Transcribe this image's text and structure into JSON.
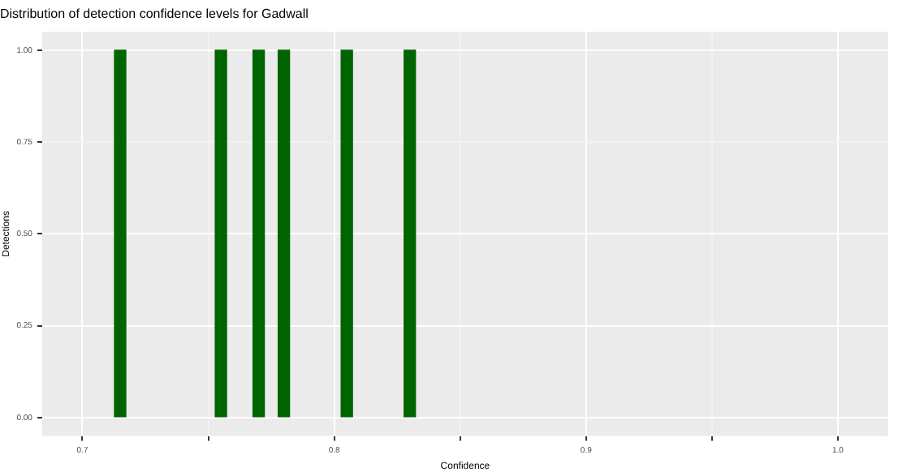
{
  "chart_data": {
    "type": "bar",
    "title": "Distribution of detection confidence levels for Gadwall",
    "xlabel": "Confidence",
    "ylabel": "Detections",
    "x": [
      0.715,
      0.755,
      0.77,
      0.78,
      0.805,
      0.83
    ],
    "values": [
      1,
      1,
      1,
      1,
      1,
      1
    ],
    "color": "#006400",
    "xlim": [
      0.684,
      1.02
    ],
    "xticks": [
      0.7,
      {
        "value": 0.75,
        "label": null
      },
      0.8,
      {
        "value": 0.85,
        "label": null
      },
      0.9,
      {
        "value": 0.95,
        "label": null
      },
      {
        "value": 1,
        "label": "1.0"
      }
    ],
    "ylim": [
      -0.05,
      1.05
    ],
    "yticks": [
      {
        "value": 0,
        "label": "0.00"
      },
      {
        "value": 0.25,
        "label": "0.25"
      },
      {
        "value": 0.5,
        "label": "0.50"
      },
      {
        "value": 0.75,
        "label": "0.75"
      },
      {
        "value": 1,
        "label": "1.00"
      }
    ],
    "grid": true,
    "legend": false
  }
}
